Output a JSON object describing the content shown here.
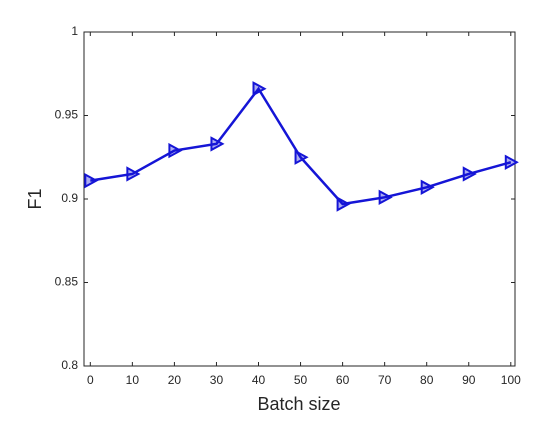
{
  "chart_data": {
    "type": "line",
    "x_label": "Batch size",
    "y_label": "F1",
    "x": [
      0,
      10,
      20,
      30,
      40,
      50,
      60,
      70,
      80,
      90,
      100
    ],
    "series": [
      {
        "color": "#1515d6",
        "values": [
          0.911,
          0.915,
          0.929,
          0.933,
          0.966,
          0.925,
          0.897,
          0.901,
          0.907,
          0.915,
          0.922
        ]
      }
    ],
    "xlim": [
      -1.5,
      101
    ],
    "ylim": [
      0.8,
      1
    ],
    "xticks": [
      0,
      10,
      20,
      30,
      40,
      50,
      60,
      70,
      80,
      90,
      100
    ],
    "yticks": [
      0.8,
      0.85,
      0.9,
      0.95,
      1
    ],
    "marker": "triangle-right"
  }
}
